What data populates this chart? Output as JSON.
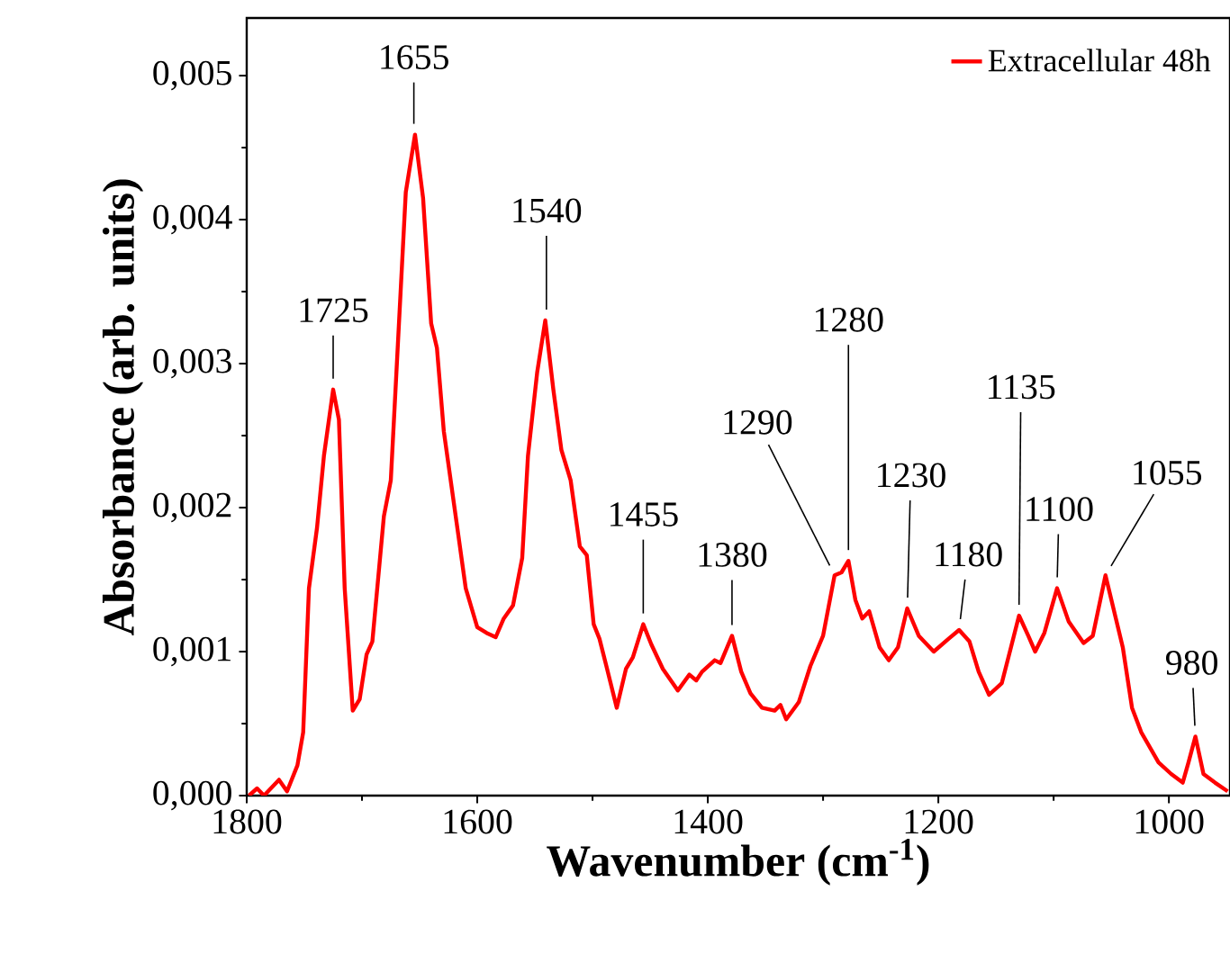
{
  "chart_data": {
    "type": "line",
    "xlabel": "Wavenumber (cm$^{-1}$)",
    "ylabel": "Absorbance (arb. units)",
    "x": [
      1798,
      1791,
      1785,
      1772,
      1765,
      1756,
      1751,
      1746,
      1739,
      1733,
      1725,
      1720,
      1715,
      1708,
      1702,
      1696,
      1691,
      1681,
      1675,
      1662,
      1654,
      1647,
      1640,
      1635,
      1629,
      1618,
      1610,
      1600,
      1592,
      1584,
      1577,
      1569,
      1561,
      1556,
      1548,
      1541,
      1534,
      1527,
      1519,
      1511,
      1505,
      1499,
      1494,
      1488,
      1479,
      1471,
      1465,
      1456,
      1449,
      1439,
      1426,
      1416,
      1410,
      1405,
      1394,
      1389,
      1379,
      1371,
      1363,
      1353,
      1342,
      1337,
      1332,
      1321,
      1311,
      1300,
      1290,
      1284,
      1278,
      1272,
      1266,
      1260,
      1251,
      1243,
      1235,
      1227,
      1217,
      1204,
      1191,
      1182,
      1173,
      1165,
      1156,
      1145,
      1137,
      1130,
      1122,
      1116,
      1108,
      1097,
      1087,
      1074,
      1066,
      1055,
      1046,
      1040,
      1032,
      1024,
      1009,
      998,
      988,
      983,
      977,
      970,
      960,
      949
    ],
    "series": [
      {
        "name": "Extracellular 48h",
        "color": "#ff0000",
        "values": [
          0.0,
          5e-05,
          0.0,
          0.00011,
          3e-05,
          0.00021,
          0.00044,
          0.00144,
          0.00186,
          0.00236,
          0.00282,
          0.00261,
          0.00144,
          0.00059,
          0.00067,
          0.00098,
          0.00107,
          0.00194,
          0.00219,
          0.00419,
          0.00459,
          0.00415,
          0.00328,
          0.00311,
          0.00253,
          0.0019,
          0.00144,
          0.00117,
          0.00113,
          0.0011,
          0.00123,
          0.00132,
          0.00165,
          0.00236,
          0.00294,
          0.0033,
          0.00282,
          0.0024,
          0.00219,
          0.00173,
          0.00167,
          0.00119,
          0.00109,
          0.0009,
          0.00061,
          0.00088,
          0.00096,
          0.00119,
          0.00105,
          0.00088,
          0.00073,
          0.00084,
          0.0008,
          0.00086,
          0.00094,
          0.00092,
          0.00111,
          0.00086,
          0.00071,
          0.00061,
          0.00059,
          0.00063,
          0.00053,
          0.00065,
          0.0009,
          0.00111,
          0.00153,
          0.00155,
          0.00163,
          0.00136,
          0.00123,
          0.00128,
          0.00103,
          0.00094,
          0.00103,
          0.0013,
          0.00111,
          0.001,
          0.00109,
          0.00115,
          0.00107,
          0.00086,
          0.0007,
          0.00078,
          0.00103,
          0.00125,
          0.00111,
          0.001,
          0.00113,
          0.00144,
          0.00121,
          0.00106,
          0.00111,
          0.00153,
          0.00123,
          0.00103,
          0.00061,
          0.00044,
          0.00023,
          0.00015,
          9e-05,
          0.00023,
          0.00041,
          0.00015,
          9e-05,
          3e-05
        ]
      }
    ],
    "xlim": [
      1800,
      947
    ],
    "ylim": [
      0,
      0.0054
    ],
    "xticks": [
      1800,
      1600,
      1400,
      1200,
      1000
    ],
    "yticks": [
      {
        "value": 0,
        "label": "0,000"
      },
      {
        "value": 0.001,
        "label": "0,001"
      },
      {
        "value": 0.002,
        "label": "0,002"
      },
      {
        "value": 0.003,
        "label": "0,003"
      },
      {
        "value": 0.004,
        "label": "0,004"
      },
      {
        "value": 0.005,
        "label": "0,005"
      }
    ],
    "legend": "top right",
    "grid": false,
    "marker": "none",
    "line_style": "solid",
    "annotations": [
      {
        "text": "1725",
        "x": 1725,
        "y": 0.00282
      },
      {
        "text": "1655",
        "x": 1655,
        "y": 0.00459
      },
      {
        "text": "1540",
        "x": 1540,
        "y": 0.0033
      },
      {
        "text": "1455",
        "x": 1456,
        "y": 0.00119
      },
      {
        "text": "1380",
        "x": 1379,
        "y": 0.00111
      },
      {
        "text": "1290",
        "x": 1290,
        "y": 0.00153
      },
      {
        "text": "1280",
        "x": 1278,
        "y": 0.00163
      },
      {
        "text": "1230",
        "x": 1227,
        "y": 0.0013
      },
      {
        "text": "1180",
        "x": 1182,
        "y": 0.00115
      },
      {
        "text": "1135",
        "x": 1130,
        "y": 0.00125
      },
      {
        "text": "1100",
        "x": 1097,
        "y": 0.00144
      },
      {
        "text": "1055",
        "x": 1055,
        "y": 0.00153
      },
      {
        "text": "980",
        "x": 977,
        "y": 0.00041
      }
    ]
  }
}
